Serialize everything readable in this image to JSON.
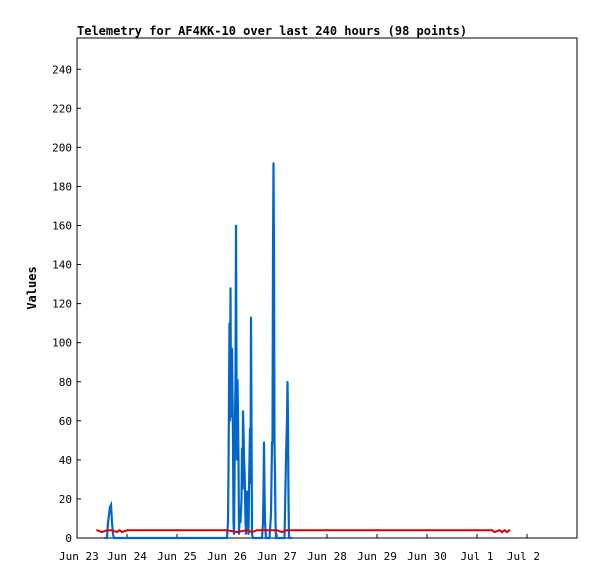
{
  "chart_data": {
    "type": "line",
    "title": "Telemetry for AF4KK-10 over last 240 hours (98 points)",
    "xlabel": "",
    "ylabel": "Values",
    "x_ticks": [
      "Jun 23",
      "Jun 24",
      "Jun 25",
      "Jun 26",
      "Jun 27",
      "Jun 28",
      "Jun 29",
      "Jun 30",
      "Jul 1",
      "Jul 2"
    ],
    "xlim": [
      0,
      10
    ],
    "y_ticks": [
      0,
      20,
      40,
      60,
      80,
      100,
      120,
      140,
      160,
      180,
      200,
      220,
      240
    ],
    "ylim": [
      0,
      256
    ],
    "grid": false,
    "legend": "none",
    "series": [
      {
        "color": "#0066cc",
        "points": [
          [
            0.55,
            0
          ],
          [
            0.6,
            0
          ],
          [
            0.62,
            8
          ],
          [
            0.64,
            12
          ],
          [
            0.66,
            16
          ],
          [
            0.68,
            17
          ],
          [
            0.7,
            8
          ],
          [
            0.72,
            2
          ],
          [
            0.74,
            0
          ],
          [
            3.0,
            0
          ],
          [
            3.02,
            8
          ],
          [
            3.03,
            35
          ],
          [
            3.04,
            73
          ],
          [
            3.05,
            110
          ],
          [
            3.06,
            60
          ],
          [
            3.07,
            128
          ],
          [
            3.08,
            62
          ],
          [
            3.1,
            97
          ],
          [
            3.12,
            50
          ],
          [
            3.13,
            8
          ],
          [
            3.14,
            2
          ],
          [
            3.15,
            28
          ],
          [
            3.16,
            60
          ],
          [
            3.17,
            80
          ],
          [
            3.18,
            160
          ],
          [
            3.19,
            81
          ],
          [
            3.2,
            40
          ],
          [
            3.21,
            81
          ],
          [
            3.22,
            62
          ],
          [
            3.23,
            40
          ],
          [
            3.24,
            2
          ],
          [
            3.26,
            16
          ],
          [
            3.27,
            8
          ],
          [
            3.29,
            20
          ],
          [
            3.3,
            46
          ],
          [
            3.31,
            25
          ],
          [
            3.32,
            65
          ],
          [
            3.33,
            55
          ],
          [
            3.34,
            41
          ],
          [
            3.35,
            35
          ],
          [
            3.36,
            24
          ],
          [
            3.37,
            8
          ],
          [
            3.38,
            2
          ],
          [
            3.4,
            24
          ],
          [
            3.41,
            8
          ],
          [
            3.42,
            16
          ],
          [
            3.43,
            2
          ],
          [
            3.44,
            25
          ],
          [
            3.46,
            56
          ],
          [
            3.47,
            28
          ],
          [
            3.48,
            113
          ],
          [
            3.49,
            56
          ],
          [
            3.5,
            2
          ],
          [
            3.52,
            0
          ],
          [
            3.7,
            0
          ],
          [
            3.72,
            8
          ],
          [
            3.73,
            24
          ],
          [
            3.74,
            49
          ],
          [
            3.75,
            24
          ],
          [
            3.76,
            8
          ],
          [
            3.78,
            0
          ],
          [
            3.85,
            0
          ],
          [
            3.88,
            12
          ],
          [
            3.9,
            49
          ],
          [
            3.91,
            49
          ],
          [
            3.92,
            145
          ],
          [
            3.93,
            192
          ],
          [
            3.94,
            144
          ],
          [
            3.95,
            48
          ],
          [
            3.96,
            32
          ],
          [
            3.97,
            8
          ],
          [
            3.98,
            0
          ],
          [
            4.15,
            0
          ],
          [
            4.18,
            40
          ],
          [
            4.2,
            61
          ],
          [
            4.21,
            80
          ],
          [
            4.22,
            60
          ],
          [
            4.23,
            20
          ],
          [
            4.24,
            0
          ],
          [
            4.3,
            0
          ]
        ]
      },
      {
        "color": "#dd0000",
        "points": [
          [
            0.4,
            4
          ],
          [
            0.5,
            3
          ],
          [
            0.6,
            4
          ],
          [
            0.7,
            4
          ],
          [
            0.8,
            3
          ],
          [
            0.85,
            4
          ],
          [
            0.9,
            3
          ],
          [
            1.0,
            4
          ],
          [
            1.5,
            4
          ],
          [
            2.0,
            4
          ],
          [
            2.5,
            4
          ],
          [
            3.0,
            4
          ],
          [
            3.2,
            3
          ],
          [
            3.4,
            4
          ],
          [
            3.5,
            3
          ],
          [
            3.6,
            4
          ],
          [
            3.7,
            4
          ],
          [
            3.8,
            4
          ],
          [
            4.0,
            4
          ],
          [
            4.1,
            3
          ],
          [
            4.2,
            4
          ],
          [
            4.4,
            4
          ],
          [
            5.0,
            4
          ],
          [
            6.0,
            4
          ],
          [
            7.0,
            4
          ],
          [
            8.0,
            4
          ],
          [
            8.3,
            4
          ],
          [
            8.35,
            3
          ],
          [
            8.45,
            4
          ],
          [
            8.5,
            3
          ],
          [
            8.55,
            4
          ],
          [
            8.6,
            3
          ],
          [
            8.65,
            4
          ]
        ]
      }
    ]
  }
}
